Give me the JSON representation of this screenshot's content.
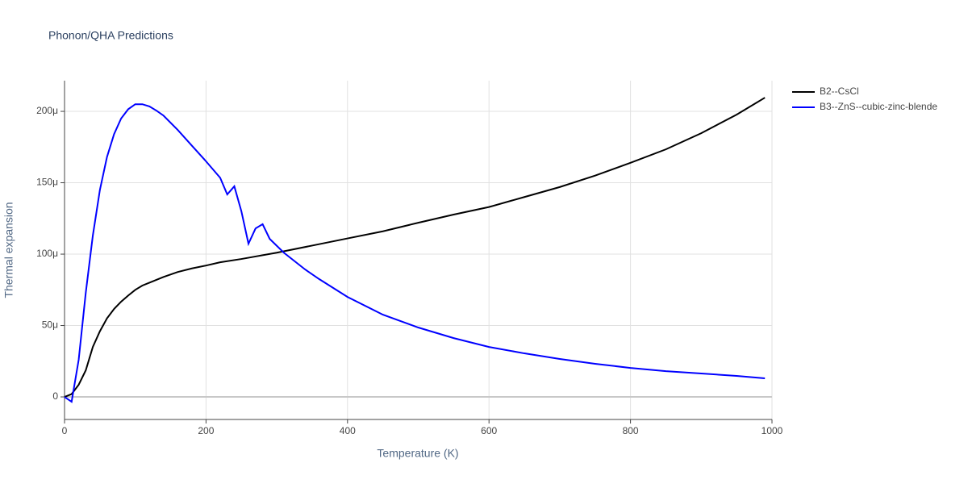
{
  "chart_data": {
    "type": "line",
    "title": "Phonon/QHA Predictions",
    "x_label": "Temperature (K)",
    "y_label": "Thermal expansion",
    "xlim": [
      0,
      1000
    ],
    "xticks": [
      0,
      200,
      400,
      600,
      800,
      1000
    ],
    "ylim": [
      -1.58e-05,
      0.0002215
    ],
    "yticks": [
      {
        "value": 0,
        "label": "0"
      },
      {
        "value": 5e-05,
        "label": "50μ"
      },
      {
        "value": 0.0001,
        "label": "100μ"
      },
      {
        "value": 0.00015,
        "label": "150μ"
      },
      {
        "value": 0.0002,
        "label": "200μ"
      }
    ],
    "grid": true,
    "legend_position": "right",
    "series": [
      {
        "name": "B2--CsCl",
        "color": "#000000",
        "x": [
          0,
          10,
          20,
          30,
          40,
          50,
          60,
          70,
          80,
          90,
          100,
          110,
          120,
          140,
          160,
          180,
          200,
          220,
          250,
          300,
          350,
          400,
          450,
          500,
          550,
          600,
          650,
          700,
          750,
          800,
          850,
          900,
          950,
          990
        ],
        "values": [
          0,
          2e-06,
          8.5e-06,
          1.86e-05,
          3.5e-05,
          4.6e-05,
          5.5e-05,
          6.16e-05,
          6.67e-05,
          7.1e-05,
          7.5e-05,
          7.8e-05,
          8e-05,
          8.4e-05,
          8.75e-05,
          9e-05,
          9.2e-05,
          9.43e-05,
          9.66e-05,
          0.000101,
          0.000106,
          0.000111,
          0.000116,
          0.000122,
          0.0001277,
          0.000133,
          0.00014,
          0.000147,
          0.000155,
          0.000164,
          0.0001734,
          0.0001847,
          0.0001977,
          0.0002096
        ]
      },
      {
        "name": "B3--ZnS--cubic-zinc-blende",
        "color": "#0000ff",
        "x": [
          0,
          10,
          20,
          30,
          40,
          50,
          60,
          70,
          80,
          90,
          100,
          110,
          120,
          130,
          140,
          160,
          180,
          200,
          220,
          230,
          240,
          250,
          260,
          270,
          280,
          290,
          310,
          340,
          360,
          400,
          450,
          500,
          550,
          600,
          650,
          700,
          750,
          800,
          850,
          900,
          950,
          990
        ],
        "values": [
          0,
          -3.4e-06,
          2.6e-05,
          7.29e-05,
          0.000113,
          0.000145,
          0.000168,
          0.000184,
          0.000195,
          0.0002015,
          0.000205,
          0.000205,
          0.0002035,
          0.0002005,
          0.000197,
          0.000187,
          0.000176,
          0.000165,
          0.0001535,
          0.0001418,
          0.0001475,
          0.00013,
          0.0001073,
          0.000118,
          0.000121,
          0.0001107,
          0.000101,
          8.93e-05,
          8.25e-05,
          7e-05,
          5.76e-05,
          4.86e-05,
          4.12e-05,
          3.5e-05,
          3.05e-05,
          2.66e-05,
          2.32e-05,
          2.03e-05,
          1.8e-05,
          1.64e-05,
          1.47e-05,
          1.3e-05
        ]
      }
    ]
  }
}
